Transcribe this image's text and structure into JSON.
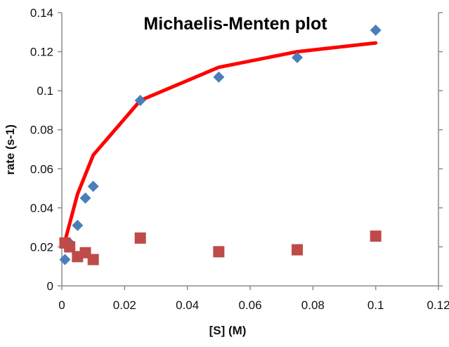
{
  "chart_data": {
    "type": "scatter",
    "title": "Michaelis-Menten plot",
    "xlabel": "[S] (M)",
    "ylabel": "rate (s-1)",
    "xlim": [
      0,
      0.12
    ],
    "ylim": [
      0,
      0.14
    ],
    "x_ticks": [
      "0",
      "0.02",
      "0.04",
      "0.06",
      "0.08",
      "0.1",
      "0.12"
    ],
    "y_ticks": [
      "0",
      "0.02",
      "0.04",
      "0.06",
      "0.08",
      "0.1",
      "0.12",
      "0.14"
    ],
    "grid": false,
    "legend": "none",
    "series": [
      {
        "kind": "scatter",
        "marker": "diamond",
        "color": "#4a7ebb",
        "points": [
          [
            0.001,
            0.0135
          ],
          [
            0.0025,
            0.022
          ],
          [
            0.005,
            0.031
          ],
          [
            0.0075,
            0.045
          ],
          [
            0.01,
            0.051
          ],
          [
            0.025,
            0.095
          ],
          [
            0.05,
            0.107
          ],
          [
            0.075,
            0.117
          ],
          [
            0.1,
            0.131
          ]
        ]
      },
      {
        "kind": "scatter",
        "marker": "square",
        "color": "#be4b48",
        "points": [
          [
            0.001,
            0.022
          ],
          [
            0.0025,
            0.02
          ],
          [
            0.005,
            0.015
          ],
          [
            0.0075,
            0.017
          ],
          [
            0.01,
            0.0135
          ],
          [
            0.025,
            0.0245
          ],
          [
            0.05,
            0.0175
          ],
          [
            0.075,
            0.0185
          ],
          [
            0.1,
            0.0255
          ]
        ]
      },
      {
        "kind": "line",
        "color": "#ff0000",
        "points": [
          [
            0.001,
            0.023
          ],
          [
            0.005,
            0.047
          ],
          [
            0.01,
            0.067
          ],
          [
            0.025,
            0.095
          ],
          [
            0.05,
            0.112
          ],
          [
            0.075,
            0.12
          ],
          [
            0.1,
            0.1245
          ]
        ]
      }
    ]
  }
}
